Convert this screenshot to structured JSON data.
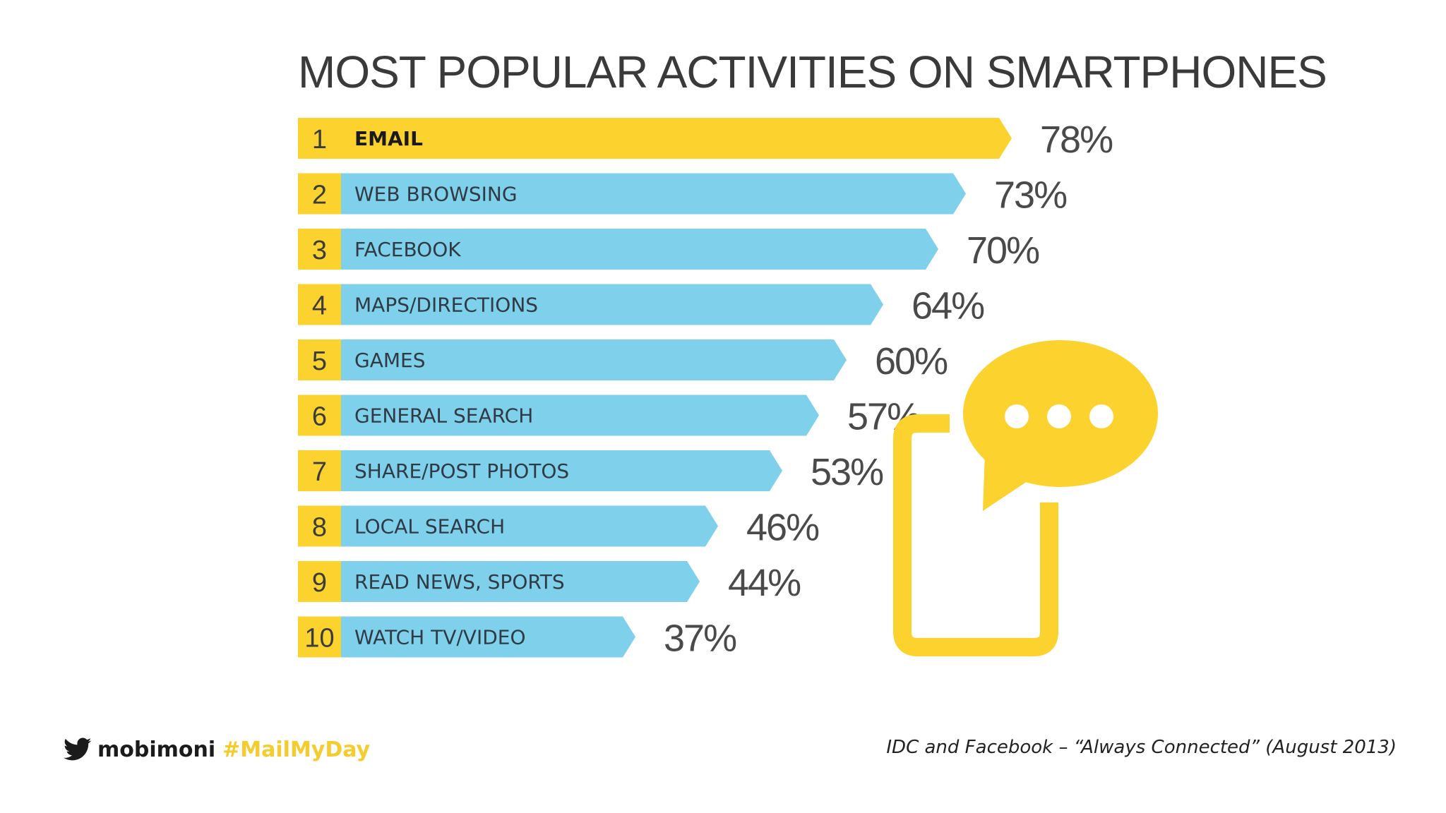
{
  "chart_data": {
    "type": "bar",
    "orientation": "horizontal",
    "title": "MOST POPULAR ACTIVITIES ON SMARTPHONES",
    "ranks": [
      "1",
      "2",
      "3",
      "4",
      "5",
      "6",
      "7",
      "8",
      "9",
      "10"
    ],
    "categories": [
      "EMAIL",
      "WEB BROWSING",
      "FACEBOOK",
      "MAPS/DIRECTIONS",
      "GAMES",
      "GENERAL SEARCH",
      "SHARE/POST PHOTOS",
      "LOCAL SEARCH",
      "READ NEWS, SPORTS",
      "WATCH TV/VIDEO"
    ],
    "values": [
      78,
      73,
      70,
      64,
      60,
      57,
      53,
      46,
      44,
      37
    ],
    "value_labels": [
      "78%",
      "73%",
      "70%",
      "64%",
      "60%",
      "57%",
      "53%",
      "46%",
      "44%",
      "37%"
    ],
    "unit": "%",
    "grid": false,
    "legend": "none",
    "colors": {
      "highlight": "#fbd22e",
      "bar": "#7fd0ea",
      "rank_box": "#fbd22e"
    }
  },
  "illustration": {
    "icon": "smartphone-chat-bubble-icon",
    "color": "#fbd22e"
  },
  "footer": {
    "icon": "twitter-icon",
    "handle": "mobimoni",
    "hashtag": "#MailMyDay",
    "source": "IDC and Facebook – “Always Connected” (August 2013)"
  }
}
